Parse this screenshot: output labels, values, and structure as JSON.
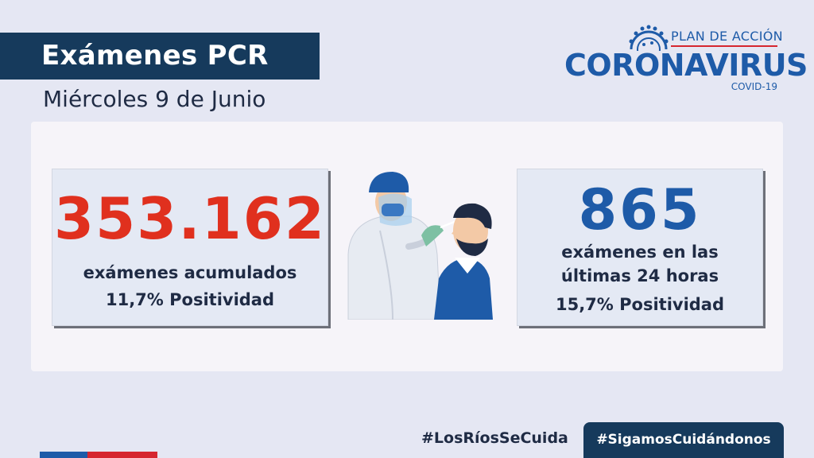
{
  "header": {
    "title": "Exámenes PCR",
    "date": "Miércoles 9 de Junio"
  },
  "logo": {
    "plan": "PLAN DE ACCIÓN",
    "main": "CORONAVIRUS",
    "sub": "COVID-19"
  },
  "stats": {
    "accumulated": {
      "value": "353.162",
      "label": "exámenes  acumulados",
      "positivity": "11,7% Positividad"
    },
    "last24": {
      "value": "865",
      "label_line1": "exámenes en las",
      "label_line2": "últimas 24 horas",
      "positivity": "15,7% Positividad"
    }
  },
  "footer": {
    "hashtag_left": "#LosRíosSeCuida",
    "hashtag_right": "#SigamosCuidándonos"
  },
  "colors": {
    "navy": "#163a5c",
    "blue": "#1e5ba8",
    "red": "#e0301e",
    "background": "#e5e7f3"
  }
}
